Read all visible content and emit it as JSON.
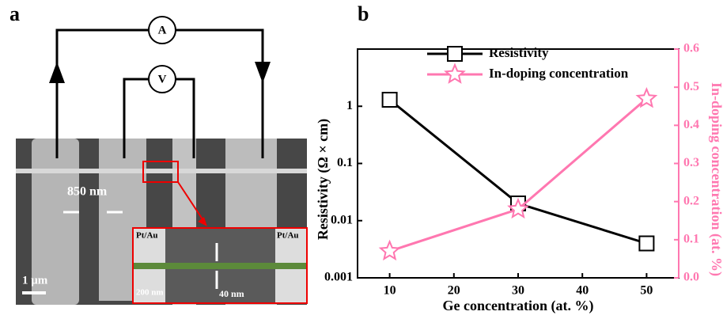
{
  "panel_a": {
    "label": "a",
    "ammeter": "A",
    "voltmeter": "V",
    "gap_width": "850 nm",
    "contact_left": "Pt/Au",
    "contact_right": "Pt/Au",
    "inset_scale": "200 nm",
    "wire_width": "40 nm",
    "scale_bar": "1 μm"
  },
  "chart_data": {
    "type": "line",
    "panel_label": "b",
    "x_label": "Ge concentration (at. %)",
    "y_label": "Resistivity (Ω × cm)",
    "y2_label": "In-doping concentration (at. %)",
    "x": [
      10,
      30,
      50
    ],
    "xlim": [
      5,
      55
    ],
    "xticks": [
      10,
      20,
      30,
      40,
      50
    ],
    "ylim": [
      0.001,
      10
    ],
    "ylog": true,
    "yticks": [
      0.001,
      0.01,
      0.1,
      1
    ],
    "y2lim": [
      0,
      0.6
    ],
    "y2ticks": [
      {
        "value": 0,
        "label": "0.0"
      },
      0.1,
      0.2,
      0.3,
      0.4,
      0.5,
      0.6
    ],
    "series": [
      {
        "name": "Resistivity",
        "color": "#000000",
        "marker": "square",
        "values": [
          1.3,
          0.02,
          0.004
        ]
      },
      {
        "name": "In-doping concentration",
        "color": "#ff77b0",
        "marker": "star",
        "axis": "y2",
        "values": [
          0.07,
          0.18,
          0.47
        ]
      }
    ]
  }
}
